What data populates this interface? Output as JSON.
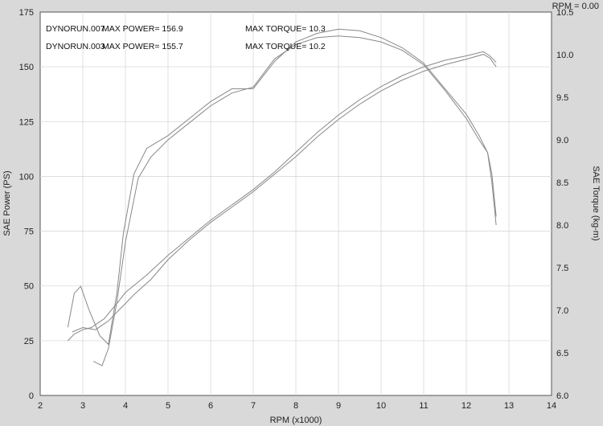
{
  "chart_data": {
    "type": "line",
    "xlabel": "RPM (x1000)",
    "ylabel_left": "SAE Power  (PS)",
    "ylabel_right": "SAE Torque  (kg-m)",
    "corner_label": "RPM = 0.00",
    "xlim": [
      2,
      14
    ],
    "ylim_left": [
      0,
      175
    ],
    "ylim_right": [
      6.0,
      10.5
    ],
    "x_ticks": [
      "2",
      "3",
      "4",
      "5",
      "6",
      "7",
      "8",
      "9",
      "10",
      "11",
      "12",
      "13",
      "14"
    ],
    "y_ticks_left": [
      "0",
      "25",
      "50",
      "75",
      "100",
      "125",
      "150",
      "175"
    ],
    "y_ticks_right": [
      "6.0",
      "6.5",
      "7.0",
      "7.5",
      "8.0",
      "8.5",
      "9.0",
      "9.5",
      "10.0",
      "10.5"
    ],
    "grid": true,
    "legend": [
      {
        "run": "DYNORUN.007",
        "power_label": "MAX POWER= 156.9",
        "torque_label": "MAX TORQUE= 10.3"
      },
      {
        "run": "DYNORUN.003",
        "power_label": "MAX POWER= 155.7",
        "torque_label": "MAX TORQUE= 10.2"
      }
    ],
    "series": [
      {
        "axis": "left",
        "x": [
          2.65,
          2.8,
          3.0,
          3.2,
          3.5,
          3.8,
          4.0,
          4.5,
          5.0,
          5.5,
          6.0,
          6.5,
          7.0,
          7.5,
          8.0,
          8.5,
          9.0,
          9.5,
          10.0,
          10.5,
          11.0,
          11.5,
          12.0,
          12.4,
          12.55,
          12.7
        ],
        "y": [
          25,
          28,
          30,
          31,
          35,
          42,
          47,
          55,
          64,
          72,
          80,
          87,
          94,
          102,
          111,
          120,
          128,
          135,
          141,
          146,
          150,
          153,
          155,
          156.9,
          155,
          152
        ]
      },
      {
        "axis": "left",
        "x": [
          2.75,
          3.0,
          3.3,
          3.6,
          3.9,
          4.2,
          4.6,
          5.0,
          5.5,
          6.0,
          6.5,
          7.0,
          7.5,
          8.0,
          8.5,
          9.0,
          9.5,
          10.0,
          10.5,
          11.0,
          11.5,
          12.0,
          12.4,
          12.55,
          12.7
        ],
        "y": [
          29,
          31,
          30,
          34,
          40,
          46,
          53,
          62,
          71,
          79,
          86,
          93,
          101,
          109,
          118,
          126,
          133,
          139,
          144,
          148,
          151,
          153.5,
          155.7,
          154,
          150
        ]
      },
      {
        "axis": "right",
        "x": [
          2.65,
          2.8,
          2.95,
          3.15,
          3.4,
          3.6,
          3.8,
          3.95,
          4.2,
          4.5,
          5.0,
          5.5,
          6.0,
          6.5,
          7.0,
          7.5,
          8.0,
          8.5,
          9.0,
          9.5,
          10.0,
          10.5,
          11.0,
          11.5,
          12.0,
          12.3,
          12.5,
          12.6,
          12.7
        ],
        "y": [
          6.8,
          7.2,
          7.28,
          7.0,
          6.7,
          6.6,
          7.2,
          7.9,
          8.6,
          8.9,
          9.05,
          9.25,
          9.45,
          9.6,
          9.6,
          9.92,
          10.15,
          10.25,
          10.3,
          10.28,
          10.2,
          10.08,
          9.9,
          9.6,
          9.3,
          9.05,
          8.85,
          8.5,
          8.0
        ]
      },
      {
        "axis": "right",
        "x": [
          3.25,
          3.45,
          3.6,
          3.8,
          4.0,
          4.3,
          4.6,
          5.0,
          5.5,
          6.0,
          6.5,
          7.0,
          7.5,
          8.0,
          8.5,
          9.0,
          9.5,
          10.0,
          10.5,
          11.0,
          11.5,
          12.0,
          12.3,
          12.5,
          12.6,
          12.7
        ],
        "y": [
          6.4,
          6.35,
          6.55,
          7.1,
          7.8,
          8.55,
          8.8,
          9.0,
          9.2,
          9.4,
          9.55,
          9.62,
          9.95,
          10.12,
          10.2,
          10.22,
          10.2,
          10.15,
          10.05,
          9.88,
          9.58,
          9.25,
          9.0,
          8.85,
          8.6,
          8.1
        ]
      }
    ]
  }
}
